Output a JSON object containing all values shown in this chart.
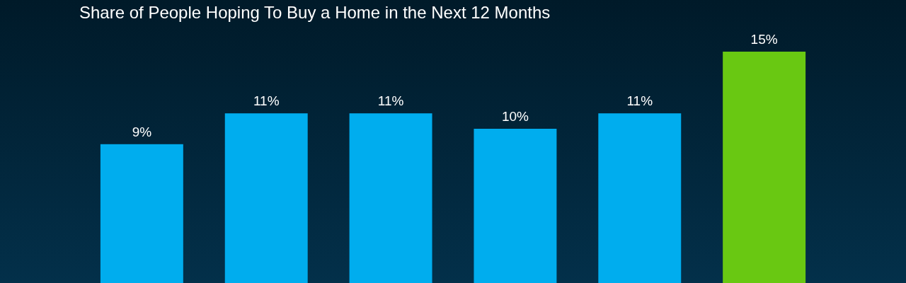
{
  "chart_data": {
    "type": "bar",
    "title": "Share of People Hoping To Buy a Home in the Next 12 Months",
    "categories": [
      null,
      null,
      null,
      null,
      null,
      null
    ],
    "values": [
      9,
      11,
      11,
      10,
      11,
      15
    ],
    "colors": [
      "#00adee",
      "#00adee",
      "#00adee",
      "#00adee",
      "#00adee",
      "#69c812"
    ],
    "value_labels": [
      "9%",
      "11%",
      "11%",
      "10%",
      "11%",
      "15%"
    ],
    "relative": false
  }
}
